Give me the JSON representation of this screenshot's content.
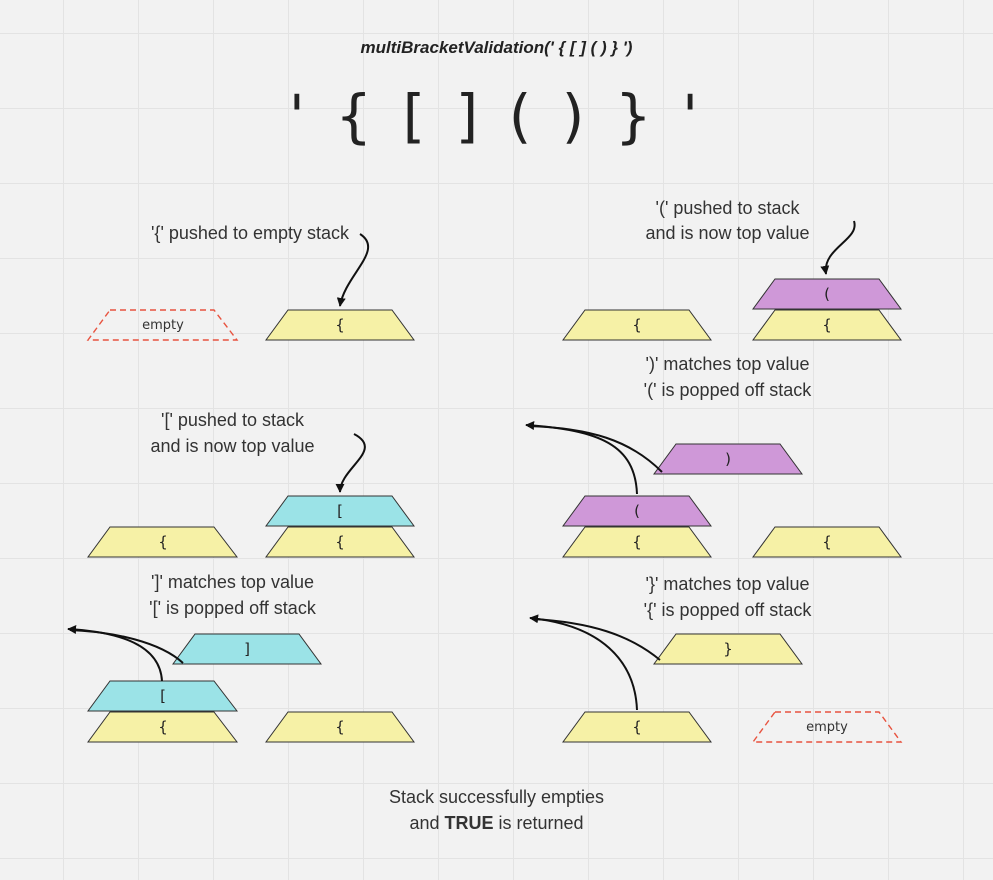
{
  "title": "multiBracketValidation(' { [ ] ( ) } ')",
  "input_string": "' { [ ] ( ) } '",
  "notes": {
    "n1": "'{' pushed to empty stack",
    "n2_line1": "'[' pushed to stack",
    "n2_line2": "and is now top value",
    "n3_line1": "']' matches top value",
    "n3_line2": "'[' is popped off stack",
    "n4_line1": "'(' pushed to stack",
    "n4_line2": "and is now top value",
    "n5_line1": "')' matches top value",
    "n5_line2": "'(' is popped off stack",
    "n6_line1": "'}' matches top value",
    "n6_line2": "'{' is popped off stack"
  },
  "conclusion": {
    "line1": "Stack successfully empties",
    "line2_prefix": "and",
    "line2_bold": "TRUE",
    "line2_suffix": "is returned"
  },
  "blocks": {
    "empty_label": "empty",
    "curly_open": "{",
    "square_open": "[",
    "square_close": "]",
    "paren_open": "(",
    "paren_close": ")",
    "curly_close": "}"
  },
  "colors": {
    "yellow": "#f6f1a6",
    "cyan": "#9be3e7",
    "purple": "#cf98d8",
    "empty_border": "#e8533f"
  }
}
